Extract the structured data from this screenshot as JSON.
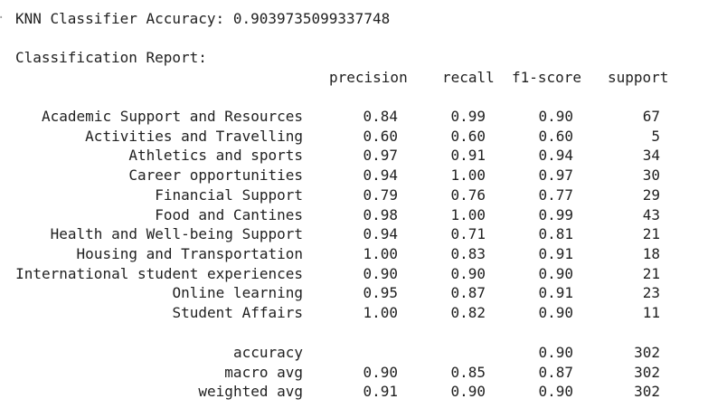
{
  "accuracy_line": "KNN Classifier Accuracy: 0.9039735099337748",
  "report_title": "Classification Report:",
  "headers": {
    "precision": "precision",
    "recall": "recall",
    "f1": "f1-score",
    "support": "support"
  },
  "rows": [
    {
      "label": "Academic Support and Resources",
      "precision": "0.84",
      "recall": "0.99",
      "f1": "0.90",
      "support": "67"
    },
    {
      "label": "Activities and Travelling",
      "precision": "0.60",
      "recall": "0.60",
      "f1": "0.60",
      "support": "5"
    },
    {
      "label": "Athletics and sports",
      "precision": "0.97",
      "recall": "0.91",
      "f1": "0.94",
      "support": "34"
    },
    {
      "label": "Career opportunities",
      "precision": "0.94",
      "recall": "1.00",
      "f1": "0.97",
      "support": "30"
    },
    {
      "label": "Financial Support",
      "precision": "0.79",
      "recall": "0.76",
      "f1": "0.77",
      "support": "29"
    },
    {
      "label": "Food and Cantines",
      "precision": "0.98",
      "recall": "1.00",
      "f1": "0.99",
      "support": "43"
    },
    {
      "label": "Health and Well-being Support",
      "precision": "0.94",
      "recall": "0.71",
      "f1": "0.81",
      "support": "21"
    },
    {
      "label": "Housing and Transportation",
      "precision": "1.00",
      "recall": "0.83",
      "f1": "0.91",
      "support": "18"
    },
    {
      "label": "International student experiences",
      "precision": "0.90",
      "recall": "0.90",
      "f1": "0.90",
      "support": "21"
    },
    {
      "label": "Online learning",
      "precision": "0.95",
      "recall": "0.87",
      "f1": "0.91",
      "support": "23"
    },
    {
      "label": "Student Affairs",
      "precision": "1.00",
      "recall": "0.82",
      "f1": "0.90",
      "support": "11"
    }
  ],
  "summary": [
    {
      "label": "accuracy",
      "precision": "",
      "recall": "",
      "f1": "0.90",
      "support": "302"
    },
    {
      "label": "macro avg",
      "precision": "0.90",
      "recall": "0.85",
      "f1": "0.87",
      "support": "302"
    },
    {
      "label": "weighted avg",
      "precision": "0.91",
      "recall": "0.90",
      "f1": "0.90",
      "support": "302"
    }
  ]
}
